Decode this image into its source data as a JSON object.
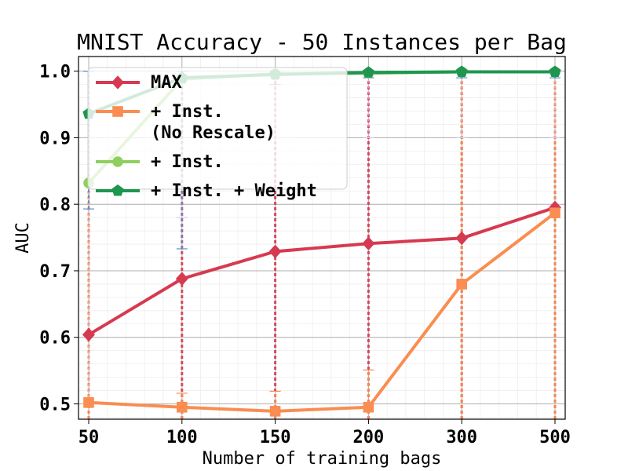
{
  "chart_data": {
    "type": "line",
    "title": "MNIST Accuracy - 50 Instances per Bag",
    "xlabel": "Number of training bags",
    "ylabel": "AUC",
    "categories": [
      "50",
      "100",
      "150",
      "200",
      "300",
      "500"
    ],
    "yticks": [
      "0.5",
      "0.6",
      "0.7",
      "0.8",
      "0.9",
      "1.0"
    ],
    "ylim": [
      0.477,
      1.022
    ],
    "grid": true,
    "legend_position": "top-left",
    "series": [
      {
        "name": "MAX",
        "values": [
          0.604,
          0.688,
          0.729,
          0.741,
          0.749,
          0.795
        ],
        "error_low": [
          0.0,
          0.0,
          0.0,
          0.0,
          0.0,
          0.0
        ],
        "error_high": [
          1.0,
          1.0,
          1.0,
          1.0,
          1.0,
          1.0
        ],
        "color": "#d63a50",
        "marker": "diamond"
      },
      {
        "name": "+ Inst.\n(No Rescale)",
        "legend_lines": [
          "+ Inst.",
          "(No Rescale)"
        ],
        "values": [
          0.502,
          0.495,
          0.489,
          0.495,
          0.68,
          0.787
        ],
        "error_low": [
          0.0,
          0.0,
          0.0,
          0.0,
          0.0,
          0.0
        ],
        "error_high": [
          1.0,
          0.516,
          0.519,
          0.551,
          1.0,
          1.0
        ],
        "color": "#f98d52",
        "marker": "square"
      },
      {
        "name": "+ Inst.",
        "values": [
          0.832,
          0.988,
          0.996,
          0.997,
          0.999,
          0.999
        ],
        "error_low": [
          0.5,
          0.78,
          0.9,
          0.9,
          0.9,
          0.9
        ],
        "error_high": [
          1.0,
          1.0,
          1.0,
          1.0,
          1.0,
          1.0
        ],
        "color": "#8fcf61",
        "marker": "circle"
      },
      {
        "name": "+ Inst. + Weight",
        "values": [
          0.936,
          0.99,
          0.995,
          0.998,
          0.999,
          0.999
        ],
        "error_low": [
          0.793,
          0.733,
          0.98,
          0.99,
          0.99,
          0.99
        ],
        "error_high": [
          1.0,
          1.0,
          1.0,
          1.0,
          1.0,
          1.0
        ],
        "color": "#1e9650",
        "marker": "pentagon"
      }
    ]
  }
}
